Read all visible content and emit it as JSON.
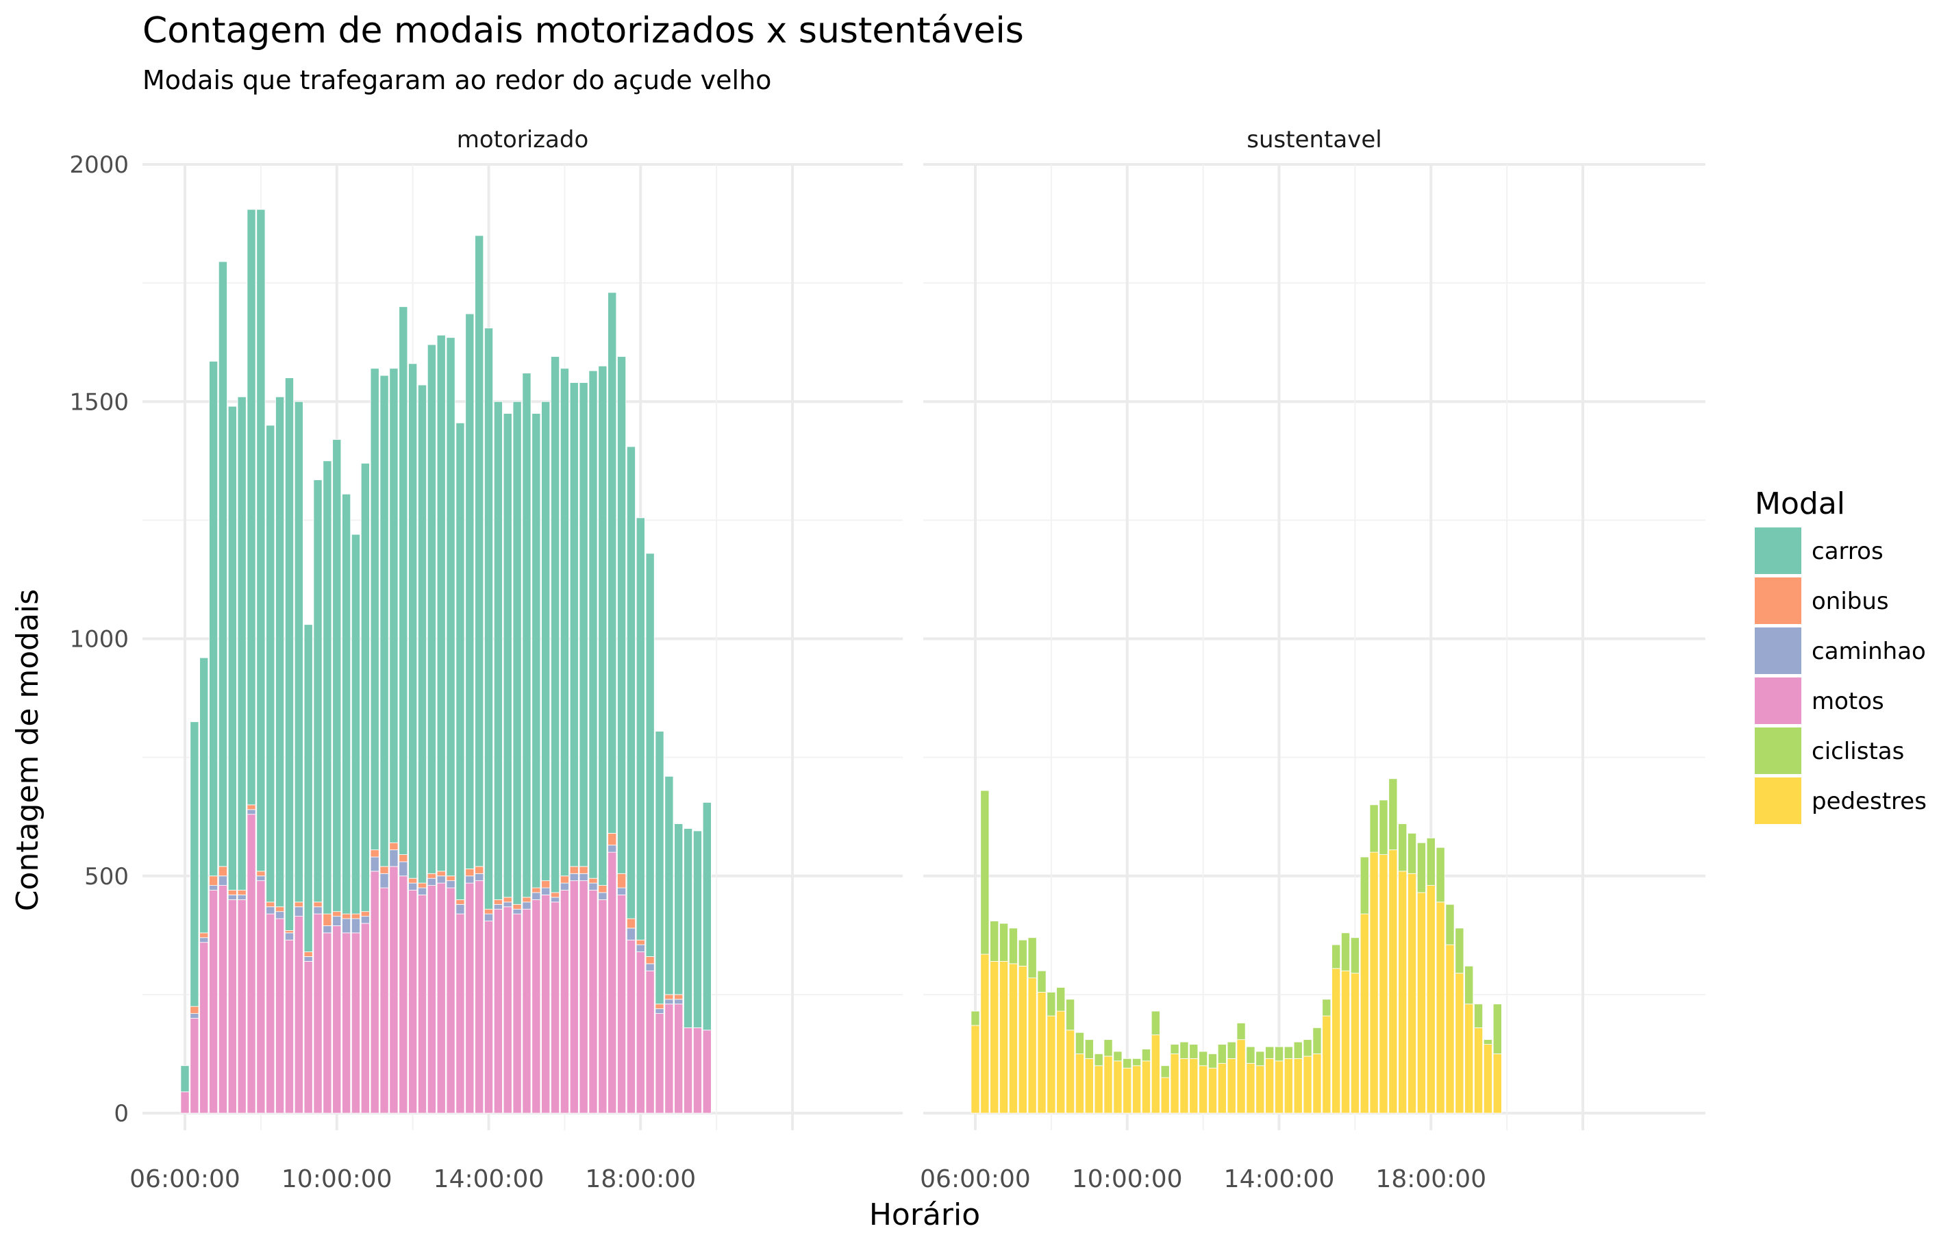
{
  "chart_data": {
    "type": "bar",
    "stacked": true,
    "title": "Contagem de modais motorizados x sustentáveis",
    "subtitle": "Modais que trafegaram ao redor do açude velho",
    "xlabel": "Horário",
    "ylabel": "Contagem de modais",
    "ylim": [
      0,
      2000
    ],
    "yticks": [
      0,
      500,
      1000,
      1500,
      2000
    ],
    "xticks": [
      "06:00:00",
      "10:00:00",
      "14:00:00",
      "18:00:00"
    ],
    "x_start_hour": 6,
    "interval_minutes": 15,
    "grid": true,
    "legend": {
      "title": "Modal",
      "position": "right",
      "entries": [
        {
          "name": "carros",
          "color": "#76C9B0"
        },
        {
          "name": "onibus",
          "color": "#FC9A71"
        },
        {
          "name": "caminhao",
          "color": "#98A8CE"
        },
        {
          "name": "motos",
          "color": "#E995C7"
        },
        {
          "name": "ciclistas",
          "color": "#AEDA68"
        },
        {
          "name": "pedestres",
          "color": "#FEDA4A"
        }
      ]
    },
    "panels": [
      {
        "label": "motorizado",
        "series": [
          {
            "name": "motos",
            "color": "#E995C7",
            "values": [
              45,
              200,
              360,
              470,
              480,
              450,
              450,
              630,
              490,
              420,
              410,
              365,
              415,
              320,
              420,
              380,
              395,
              380,
              380,
              400,
              510,
              475,
              520,
              500,
              470,
              460,
              480,
              485,
              475,
              420,
              485,
              490,
              405,
              430,
              435,
              420,
              430,
              450,
              460,
              445,
              470,
              490,
              490,
              470,
              450,
              550,
              460,
              365,
              340,
              300,
              210,
              230,
              230,
              180,
              180,
              175
            ]
          },
          {
            "name": "caminhao",
            "color": "#98A8CE",
            "values": [
              0,
              10,
              10,
              10,
              20,
              10,
              10,
              10,
              10,
              15,
              15,
              15,
              20,
              10,
              15,
              15,
              20,
              30,
              30,
              15,
              30,
              30,
              35,
              30,
              15,
              15,
              15,
              15,
              15,
              20,
              15,
              15,
              15,
              10,
              10,
              10,
              15,
              15,
              15,
              10,
              15,
              15,
              15,
              15,
              15,
              15,
              15,
              25,
              15,
              15,
              10,
              10,
              10,
              0,
              0,
              0
            ]
          },
          {
            "name": "onibus",
            "color": "#FC9A71",
            "values": [
              0,
              15,
              10,
              20,
              20,
              10,
              10,
              10,
              10,
              10,
              10,
              5,
              10,
              10,
              10,
              25,
              10,
              10,
              10,
              10,
              15,
              15,
              15,
              15,
              10,
              10,
              10,
              10,
              10,
              10,
              15,
              15,
              10,
              10,
              10,
              10,
              10,
              10,
              15,
              10,
              15,
              15,
              15,
              10,
              15,
              25,
              30,
              20,
              10,
              15,
              10,
              10,
              10,
              0,
              0,
              0
            ]
          },
          {
            "name": "carros",
            "color": "#76C9B0",
            "values": [
              55,
              600,
              580,
              1085,
              1275,
              1020,
              1040,
              1255,
              1395,
              1005,
              1075,
              1165,
              1055,
              690,
              890,
              955,
              995,
              885,
              800,
              945,
              1015,
              1035,
              1000,
              1155,
              1085,
              1050,
              1115,
              1130,
              1135,
              1005,
              1170,
              1330,
              1225,
              1050,
              1020,
              1060,
              1105,
              1000,
              1010,
              1130,
              1070,
              1020,
              1020,
              1070,
              1095,
              1140,
              1090,
              995,
              890,
              850,
              575,
              460,
              360,
              420,
              415,
              480
            ]
          }
        ]
      },
      {
        "label": "sustentavel",
        "series": [
          {
            "name": "pedestres",
            "color": "#FEDA4A",
            "values": [
              185,
              335,
              320,
              320,
              315,
              310,
              285,
              255,
              205,
              215,
              175,
              125,
              115,
              100,
              120,
              110,
              95,
              100,
              110,
              165,
              75,
              125,
              115,
              115,
              100,
              95,
              105,
              115,
              155,
              105,
              100,
              115,
              110,
              115,
              115,
              120,
              125,
              205,
              305,
              300,
              295,
              420,
              550,
              545,
              555,
              510,
              505,
              465,
              480,
              445,
              355,
              295,
              230,
              180,
              145,
              125
            ]
          },
          {
            "name": "ciclistas",
            "color": "#AEDA68",
            "values": [
              30,
              345,
              85,
              80,
              75,
              55,
              85,
              45,
              50,
              50,
              65,
              45,
              40,
              25,
              35,
              20,
              20,
              15,
              25,
              50,
              25,
              20,
              35,
              30,
              30,
              30,
              40,
              35,
              35,
              35,
              30,
              25,
              30,
              25,
              35,
              35,
              55,
              35,
              50,
              80,
              75,
              120,
              100,
              115,
              150,
              100,
              85,
              105,
              100,
              115,
              85,
              95,
              80,
              50,
              10,
              105
            ]
          }
        ]
      }
    ]
  }
}
